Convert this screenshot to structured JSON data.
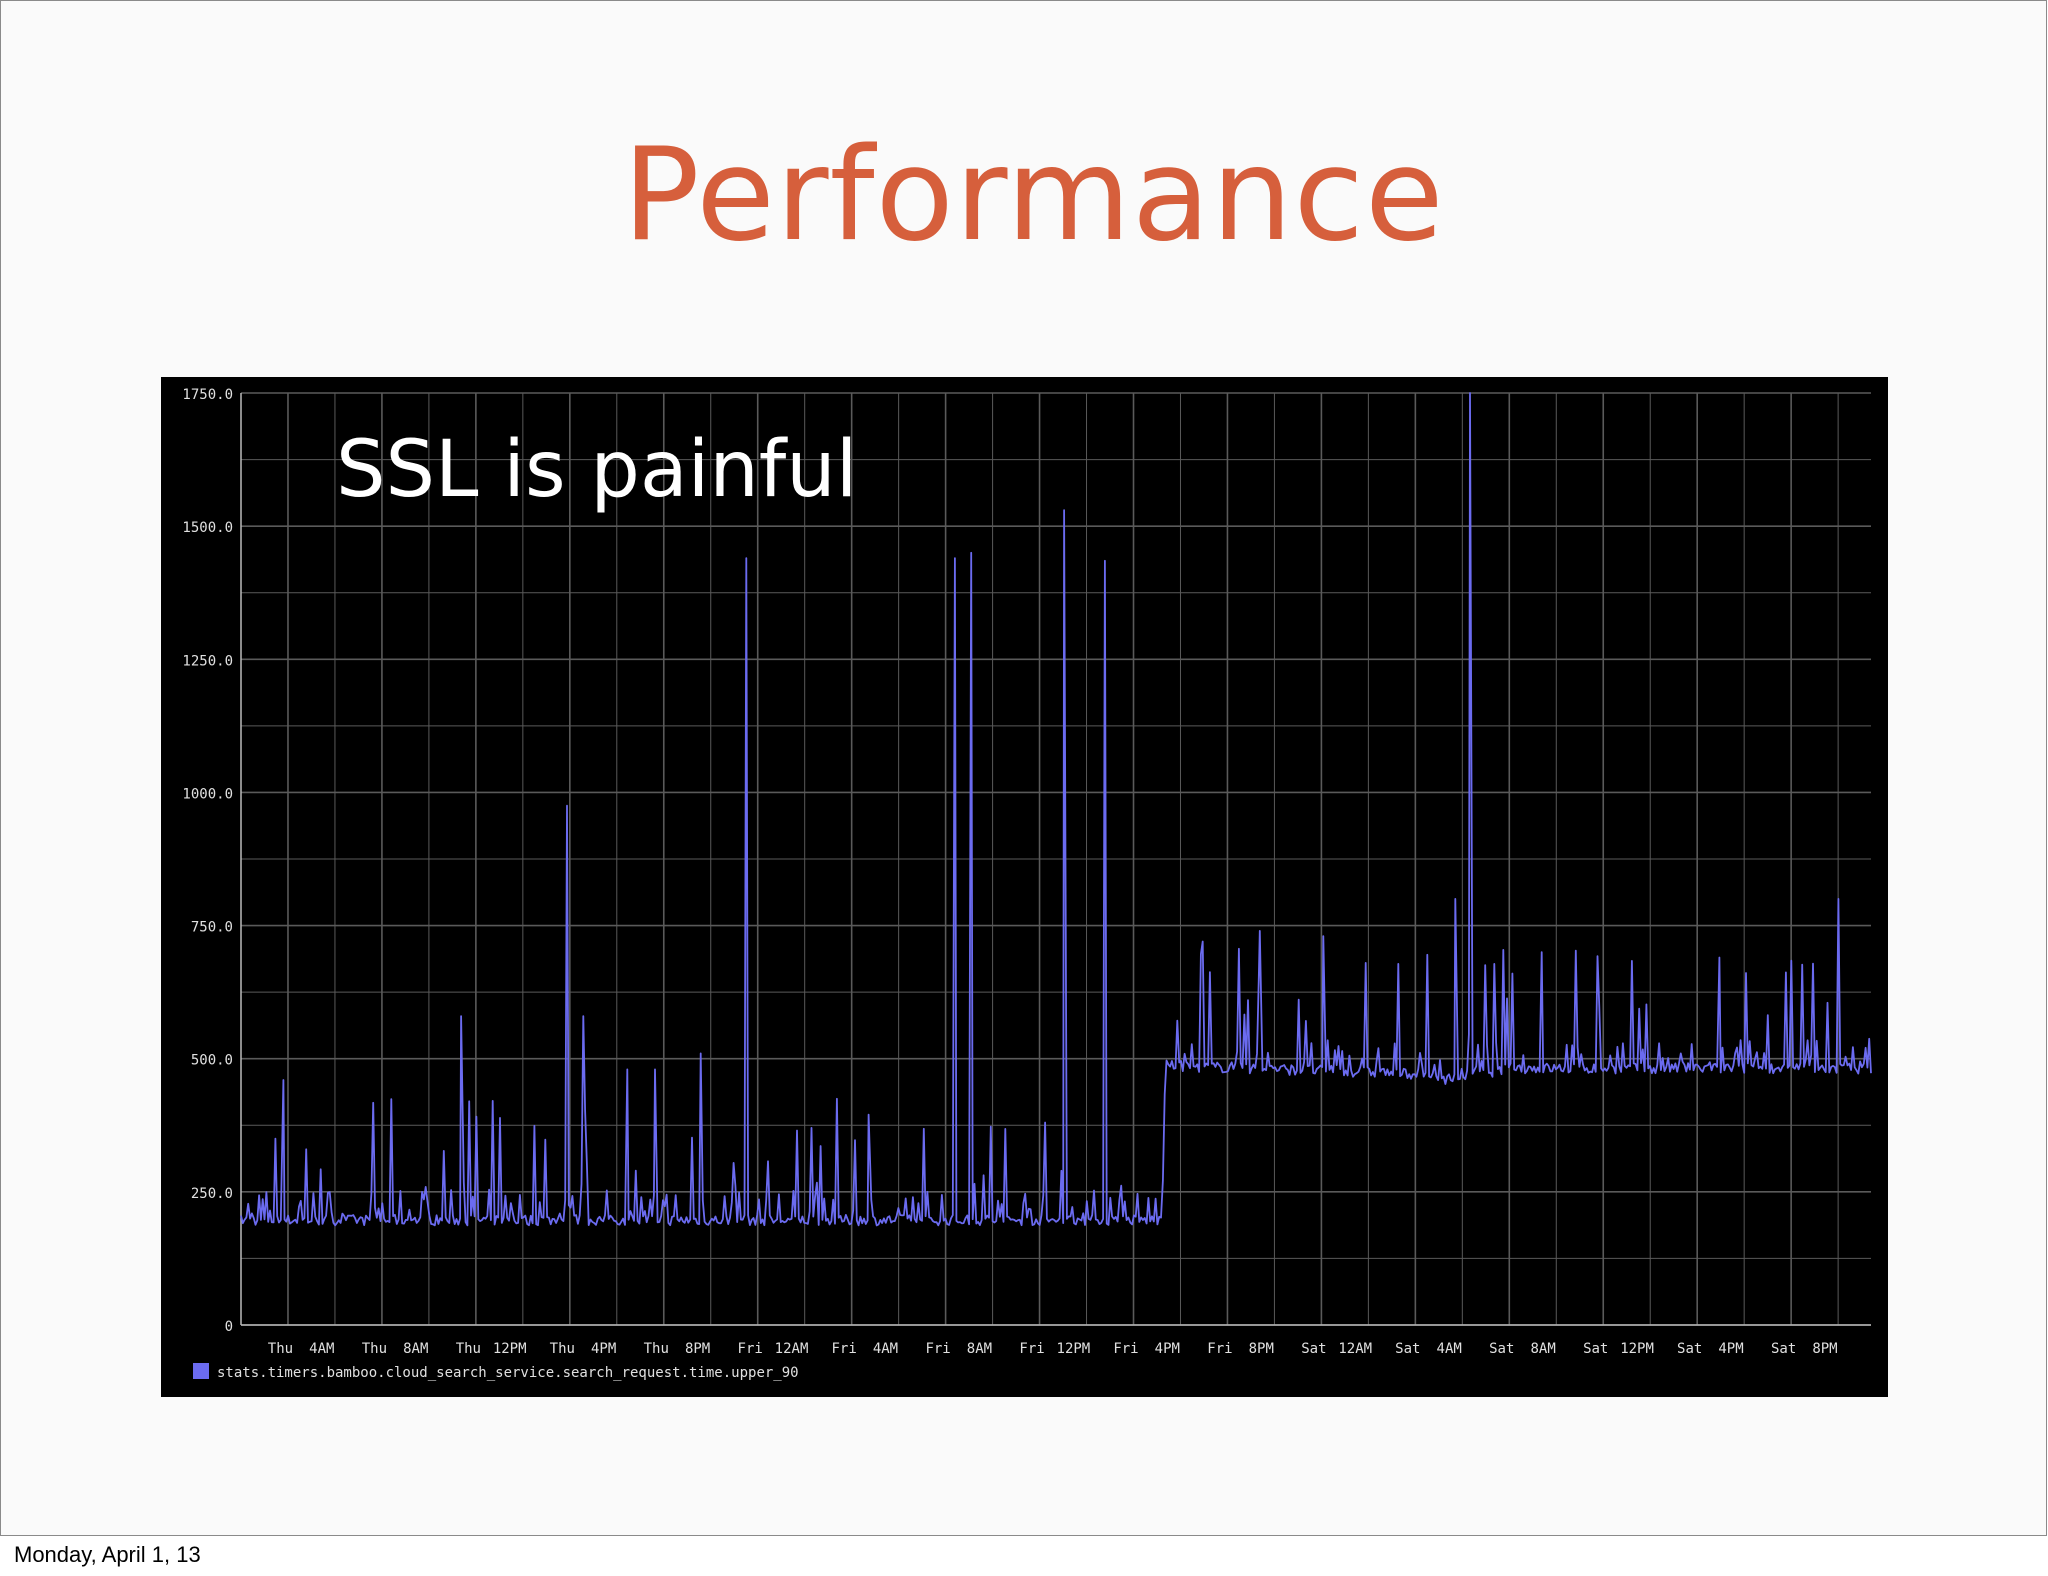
{
  "slide": {
    "title": "Performance",
    "footer_date": "Monday, April 1, 13"
  },
  "colors": {
    "title": "#d65f3c",
    "chart_background": "#000000",
    "grid": "#5a5a5a",
    "series": "#6b6bf0",
    "tick_label": "#e0e0e0"
  },
  "chart_data": {
    "type": "line",
    "annotation": "SSL is painful",
    "ylim": [
      0,
      1750
    ],
    "y_ticks": [
      "0",
      "250.0",
      "500.0",
      "750.0",
      "1000.0",
      "1250.0",
      "1500.0",
      "1750.0"
    ],
    "x_tick_labels": [
      "Thu",
      "4AM",
      "Thu",
      "8AM",
      "Thu",
      "12PM",
      "Thu",
      "4PM",
      "Thu",
      "8PM",
      "Fri",
      "12AM",
      "Fri",
      "4AM",
      "Fri",
      "8AM",
      "Fri",
      "12PM",
      "Fri",
      "4PM",
      "Fri",
      "8PM",
      "Sat",
      "12AM",
      "Sat",
      "4AM",
      "Sat",
      "8AM",
      "Sat",
      "12PM",
      "Sat",
      "4PM",
      "Sat",
      "8PM"
    ],
    "grid": true,
    "legend_position": "bottom-left",
    "series": [
      {
        "name": "stats.timers.bamboo.cloud_search_service.search_request.time.upper_90",
        "baseline": [
          {
            "x_frac": 0.0,
            "y": 195
          },
          {
            "x_frac": 0.565,
            "y": 195
          },
          {
            "x_frac": 0.567,
            "y": 485
          },
          {
            "x_frac": 0.72,
            "y": 470
          },
          {
            "x_frac": 0.74,
            "y": 460
          },
          {
            "x_frac": 0.78,
            "y": 480
          },
          {
            "x_frac": 1.0,
            "y": 480
          }
        ],
        "spikes": [
          {
            "x_frac": 0.026,
            "y": 460
          },
          {
            "x_frac": 0.04,
            "y": 330
          },
          {
            "x_frac": 0.135,
            "y": 580
          },
          {
            "x_frac": 0.14,
            "y": 420
          },
          {
            "x_frac": 0.2,
            "y": 975
          },
          {
            "x_frac": 0.21,
            "y": 580
          },
          {
            "x_frac": 0.237,
            "y": 480
          },
          {
            "x_frac": 0.254,
            "y": 480
          },
          {
            "x_frac": 0.282,
            "y": 510
          },
          {
            "x_frac": 0.31,
            "y": 1440
          },
          {
            "x_frac": 0.35,
            "y": 370
          },
          {
            "x_frac": 0.385,
            "y": 395
          },
          {
            "x_frac": 0.438,
            "y": 1440
          },
          {
            "x_frac": 0.448,
            "y": 1450
          },
          {
            "x_frac": 0.505,
            "y": 1530
          },
          {
            "x_frac": 0.53,
            "y": 1435
          },
          {
            "x_frac": 0.59,
            "y": 720
          },
          {
            "x_frac": 0.625,
            "y": 740
          },
          {
            "x_frac": 0.664,
            "y": 730
          },
          {
            "x_frac": 0.69,
            "y": 680
          },
          {
            "x_frac": 0.745,
            "y": 800
          },
          {
            "x_frac": 0.754,
            "y": 1750
          },
          {
            "x_frac": 0.78,
            "y": 660
          },
          {
            "x_frac": 0.798,
            "y": 700
          },
          {
            "x_frac": 0.907,
            "y": 690
          },
          {
            "x_frac": 0.98,
            "y": 800
          }
        ]
      }
    ]
  }
}
